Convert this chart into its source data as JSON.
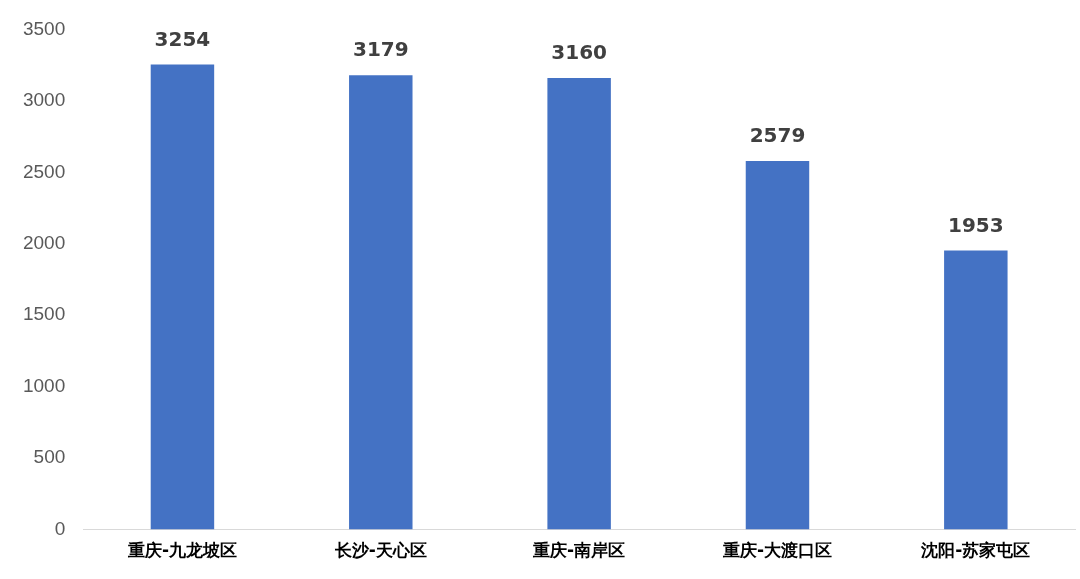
{
  "chart_data": {
    "type": "bar",
    "categories": [
      "重庆-九龙坡区",
      "长沙-天心区",
      "重庆-南岸区",
      "重庆-大渡口区",
      "沈阳-苏家屯区"
    ],
    "values": [
      3254,
      3179,
      3160,
      2579,
      1953
    ],
    "color": "#4472c4",
    "ylim": [
      0,
      3500
    ],
    "yticks": [
      0,
      500,
      1000,
      1500,
      2000,
      2500,
      3000,
      3500
    ],
    "grid": false,
    "legend": false,
    "data_labels": true
  }
}
